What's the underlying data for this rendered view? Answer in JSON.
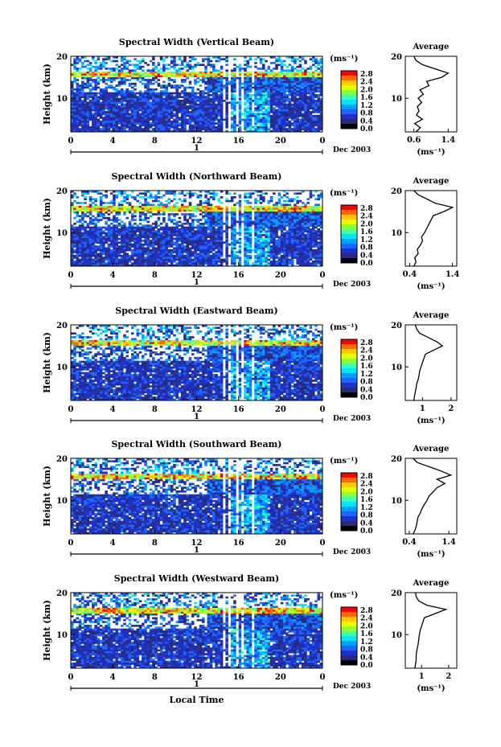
{
  "figure": {
    "date_label": "Dec 2003",
    "day_label": "1",
    "bottom_xlabel": "Local Time",
    "unit_label": "(ms⁻¹)",
    "average_title": "Average",
    "colorbar_ticks": [
      "2.8",
      "2.4",
      "2.0",
      "1.6",
      "1.2",
      "0.8",
      "0.4",
      "0.0"
    ],
    "colorbar_colors": [
      "#ff0000",
      "#ff6a00",
      "#ffc800",
      "#e6ff00",
      "#8cff3c",
      "#3cffb4",
      "#00e6ff",
      "#00a0ff",
      "#1e64ff",
      "#1e32c8",
      "#2a2a78",
      "#000000"
    ]
  },
  "chart_data": [
    {
      "type": "heatmap",
      "title": "Spectral Width (Vertical Beam)",
      "ylabel": "Height (km)",
      "xlabel": "",
      "x_ticks": [
        "0",
        "4",
        "8",
        "12",
        "16",
        "20",
        "0"
      ],
      "y_ticks": [
        "20",
        "10"
      ],
      "xlim": [
        0,
        24
      ],
      "ylim": [
        2,
        20
      ],
      "colorbar": {
        "label": "(ms⁻¹)",
        "range": [
          0.0,
          2.8
        ]
      },
      "profile": {
        "title": "Average",
        "xlabel": "(ms⁻¹)",
        "x_ticks": [
          "0.6",
          "1.4"
        ],
        "xlim": [
          0.4,
          1.6
        ],
        "y_ticks": [
          "20",
          "10"
        ],
        "heights": [
          2,
          3,
          4,
          5,
          6,
          7,
          8,
          9,
          10,
          11,
          12,
          13,
          14,
          15,
          16,
          17,
          18,
          19,
          20
        ],
        "values": [
          0.65,
          0.75,
          0.62,
          0.8,
          0.66,
          0.72,
          0.68,
          0.78,
          0.7,
          0.82,
          0.74,
          0.95,
          0.9,
          1.25,
          1.4,
          1.1,
          0.8,
          0.65,
          0.6
        ]
      }
    },
    {
      "type": "heatmap",
      "title": "Spectral Width (Northward Beam)",
      "ylabel": "Height (km)",
      "xlabel": "",
      "x_ticks": [
        "0",
        "4",
        "8",
        "12",
        "16",
        "20",
        "0"
      ],
      "y_ticks": [
        "20",
        "10"
      ],
      "xlim": [
        0,
        24
      ],
      "ylim": [
        2,
        20
      ],
      "colorbar": {
        "label": "(ms⁻¹)",
        "range": [
          0.0,
          2.8
        ]
      },
      "profile": {
        "title": "Average",
        "xlabel": "(ms⁻¹)",
        "x_ticks": [
          "0.4",
          "1.4"
        ],
        "xlim": [
          0.3,
          1.5
        ],
        "y_ticks": [
          "20",
          "10"
        ],
        "heights": [
          2,
          3,
          4,
          5,
          6,
          7,
          8,
          9,
          10,
          11,
          12,
          13,
          14,
          15,
          16,
          17,
          18,
          19,
          20
        ],
        "values": [
          0.5,
          0.55,
          0.52,
          0.6,
          0.58,
          0.65,
          0.7,
          0.68,
          0.75,
          0.8,
          0.85,
          0.9,
          0.95,
          1.2,
          1.4,
          1.0,
          0.8,
          0.6,
          0.5
        ]
      }
    },
    {
      "type": "heatmap",
      "title": "Spectral Width (Eastward Beam)",
      "ylabel": "Height (km)",
      "xlabel": "",
      "x_ticks": [
        "0",
        "4",
        "8",
        "12",
        "16",
        "20",
        "0"
      ],
      "y_ticks": [
        "20",
        "10"
      ],
      "xlim": [
        0,
        24
      ],
      "ylim": [
        2,
        20
      ],
      "colorbar": {
        "label": "(ms⁻¹)",
        "range": [
          0.0,
          2.8
        ]
      },
      "profile": {
        "title": "Average",
        "xlabel": "(ms⁻¹)",
        "x_ticks": [
          "1",
          "2"
        ],
        "xlim": [
          0.4,
          2.2
        ],
        "y_ticks": [
          "20",
          "10"
        ],
        "heights": [
          2,
          3,
          4,
          5,
          6,
          7,
          8,
          9,
          10,
          11,
          12,
          13,
          14,
          15,
          16,
          17,
          18,
          19,
          20
        ],
        "values": [
          0.7,
          0.72,
          0.75,
          0.78,
          0.8,
          0.85,
          0.88,
          0.9,
          0.95,
          1.0,
          1.05,
          1.1,
          1.4,
          1.7,
          1.5,
          1.2,
          0.9,
          0.8,
          0.75
        ]
      }
    },
    {
      "type": "heatmap",
      "title": "Spectral Width (Southward Beam)",
      "ylabel": "Height (km)",
      "xlabel": "",
      "x_ticks": [
        "0",
        "4",
        "8",
        "12",
        "16",
        "20",
        "0"
      ],
      "y_ticks": [
        "20",
        "10"
      ],
      "xlim": [
        0,
        24
      ],
      "ylim": [
        2,
        20
      ],
      "colorbar": {
        "label": "(ms⁻¹)",
        "range": [
          0.0,
          2.8
        ]
      },
      "profile": {
        "title": "Average",
        "xlabel": "(ms⁻¹)",
        "x_ticks": [
          "0.4",
          "1.4"
        ],
        "xlim": [
          0.3,
          1.6
        ],
        "y_ticks": [
          "20",
          "10"
        ],
        "heights": [
          2,
          3,
          4,
          5,
          6,
          7,
          8,
          9,
          10,
          11,
          12,
          13,
          14,
          15,
          16,
          17,
          18,
          19,
          20
        ],
        "values": [
          0.5,
          0.55,
          0.58,
          0.6,
          0.62,
          0.68,
          0.72,
          0.78,
          0.85,
          0.9,
          1.0,
          1.1,
          1.3,
          1.1,
          1.45,
          1.2,
          0.9,
          0.6,
          0.5
        ]
      }
    },
    {
      "type": "heatmap",
      "title": "Spectral Width (Westward Beam)",
      "ylabel": "Height (km)",
      "xlabel": "Local Time",
      "x_ticks": [
        "0",
        "4",
        "8",
        "12",
        "16",
        "20",
        "0"
      ],
      "y_ticks": [
        "20",
        "10"
      ],
      "xlim": [
        0,
        24
      ],
      "ylim": [
        2,
        20
      ],
      "colorbar": {
        "label": "(ms⁻¹)",
        "range": [
          0.0,
          2.8
        ]
      },
      "profile": {
        "title": "Average",
        "xlabel": "(ms⁻¹)",
        "x_ticks": [
          "1",
          "2"
        ],
        "xlim": [
          0.4,
          2.3
        ],
        "y_ticks": [
          "20",
          "10"
        ],
        "heights": [
          2,
          3,
          4,
          5,
          6,
          7,
          8,
          9,
          10,
          11,
          12,
          13,
          14,
          15,
          16,
          17,
          18,
          19,
          20
        ],
        "values": [
          0.75,
          0.78,
          0.8,
          0.8,
          0.82,
          0.85,
          0.88,
          0.9,
          0.92,
          0.95,
          1.0,
          1.05,
          1.1,
          1.5,
          1.9,
          1.2,
          0.9,
          0.8,
          0.78
        ]
      }
    }
  ]
}
